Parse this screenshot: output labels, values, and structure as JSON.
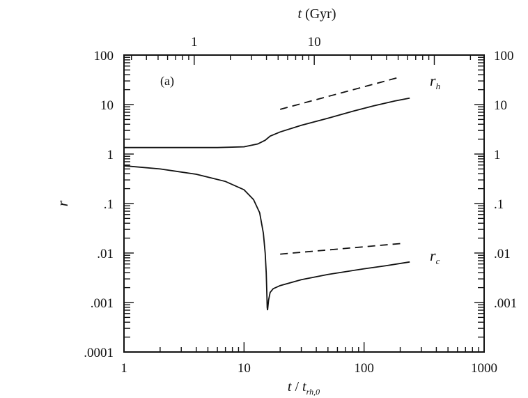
{
  "chart_data": {
    "type": "line",
    "title": "",
    "panel_label": "(a)",
    "xlabel": "t / t_rh,0",
    "xlabel_parts": {
      "t": "t",
      "slash": " / ",
      "t2": "t",
      "sub": "rh,0"
    },
    "x2label": "t (Gyr)",
    "x2label_parts": {
      "t": "t",
      "rest": " (Gyr)"
    },
    "ylabel": "r",
    "x_scale": "log",
    "y_scale": "log",
    "xlim": [
      1,
      1000
    ],
    "ylim": [
      0.0001,
      100
    ],
    "x2lim": [
      0.26,
      260
    ],
    "x_ticks": [
      1,
      10,
      100,
      1000
    ],
    "x_tick_labels": [
      "1",
      "10",
      "100",
      "1000"
    ],
    "x2_ticks": [
      1,
      10
    ],
    "x2_tick_labels": [
      "1",
      "10"
    ],
    "y_ticks": [
      0.0001,
      0.001,
      0.01,
      0.1,
      1,
      10,
      100
    ],
    "y_tick_labels_left": [
      ".0001",
      ".001",
      ".01",
      ".1",
      "1",
      "10",
      "100"
    ],
    "y_tick_labels_right": [
      "",
      ".001",
      ".01",
      ".1",
      "1",
      "10",
      "100"
    ],
    "grid": false,
    "legend": "none",
    "series": [
      {
        "name": "r_h",
        "label_text": "r",
        "label_sub": "h",
        "style": "solid",
        "x": [
          1,
          3,
          6,
          10,
          13,
          15,
          16.5,
          20,
          30,
          50,
          80,
          120,
          180,
          240
        ],
        "y": [
          1.35,
          1.35,
          1.35,
          1.4,
          1.6,
          1.9,
          2.3,
          2.8,
          3.8,
          5.3,
          7.3,
          9.4,
          11.8,
          13.5
        ]
      },
      {
        "name": "r_h power law",
        "style": "dashed",
        "x": [
          20,
          200
        ],
        "y": [
          8,
          36
        ]
      },
      {
        "name": "r_c",
        "label_text": "r",
        "label_sub": "c",
        "style": "solid",
        "x": [
          1,
          2,
          4,
          7,
          10,
          12,
          13.5,
          14.5,
          15,
          15.3,
          15.5,
          15.6,
          15.7,
          16,
          16.5,
          17.5,
          20,
          30,
          50,
          100,
          150,
          240
        ],
        "y": [
          0.58,
          0.5,
          0.39,
          0.28,
          0.19,
          0.12,
          0.065,
          0.025,
          0.01,
          0.004,
          0.0015,
          0.0008,
          0.0007,
          0.0011,
          0.0016,
          0.0019,
          0.0022,
          0.0029,
          0.0037,
          0.0048,
          0.0055,
          0.0066
        ]
      },
      {
        "name": "r_c power law",
        "style": "dashed",
        "x": [
          20,
          200
        ],
        "y": [
          0.0095,
          0.0155
        ]
      }
    ]
  }
}
